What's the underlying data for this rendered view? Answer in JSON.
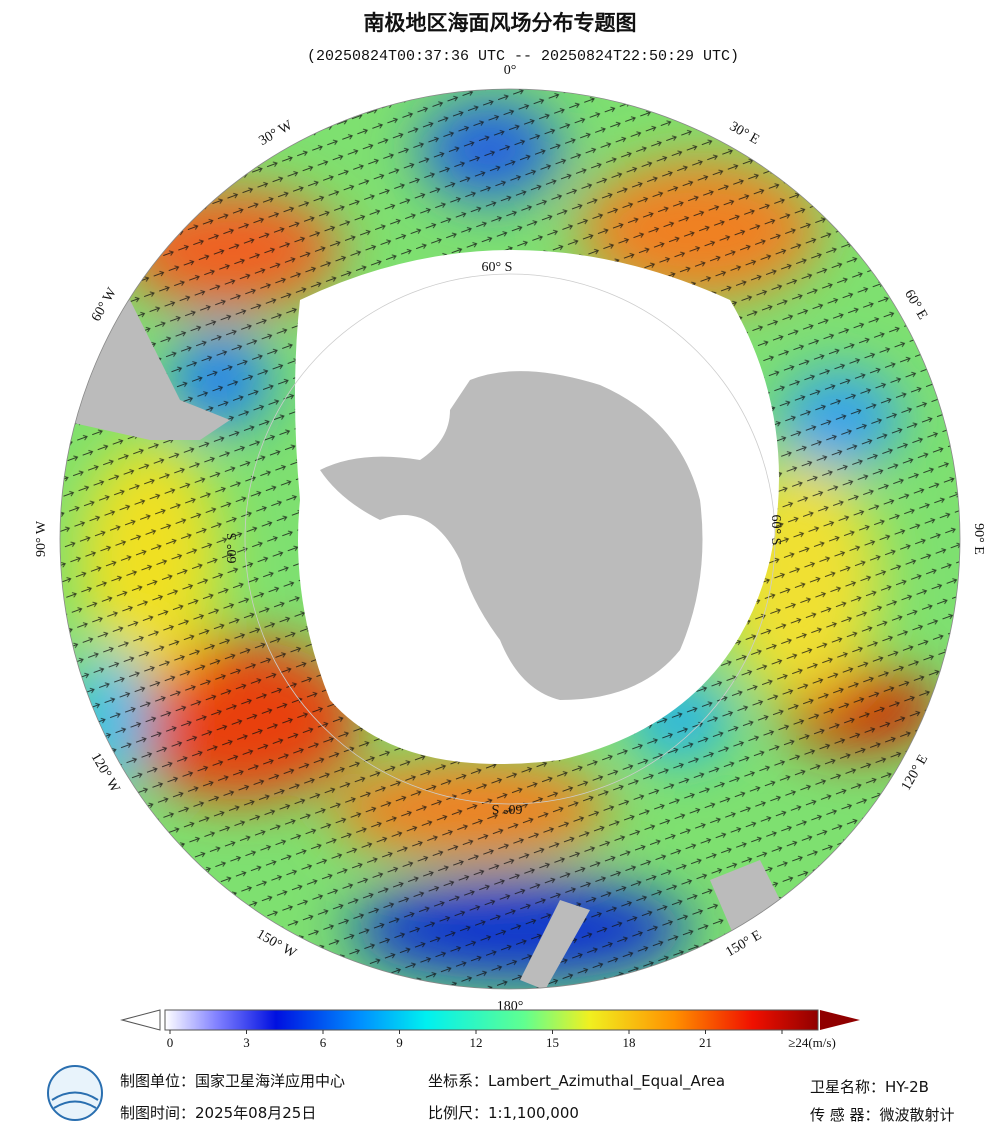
{
  "header": {
    "title": "南极地区海面风场分布专题图",
    "subtitle": "(20250824T00:37:36 UTC -- 20250824T22:50:29 UTC)"
  },
  "map": {
    "longitude_labels": [
      "0°",
      "30° E",
      "60° E",
      "90° E",
      "120° E",
      "150° E",
      "180°",
      "150° W",
      "120° W",
      "90° W",
      "60° W",
      "30° W"
    ],
    "latitude_labels": [
      "60° S",
      "60° S",
      "60° S",
      "60° S"
    ]
  },
  "colorbar": {
    "range": [
      0,
      24
    ],
    "ticks": [
      0,
      3,
      6,
      9,
      12,
      15,
      18,
      21,
      {
        "value": 24,
        "label": "≥24(m/s)"
      }
    ]
  },
  "footer": {
    "left": [
      "制图单位：国家卫星海洋应用中心",
      "制图时间：2025年08月25日"
    ],
    "middle": [
      "坐标系：Lambert_Azimuthal_Equal_Area",
      "比例尺：1:1,100,000"
    ],
    "right": [
      "卫星名称：HY-2B",
      "传 感 器：微波散射计"
    ]
  }
}
